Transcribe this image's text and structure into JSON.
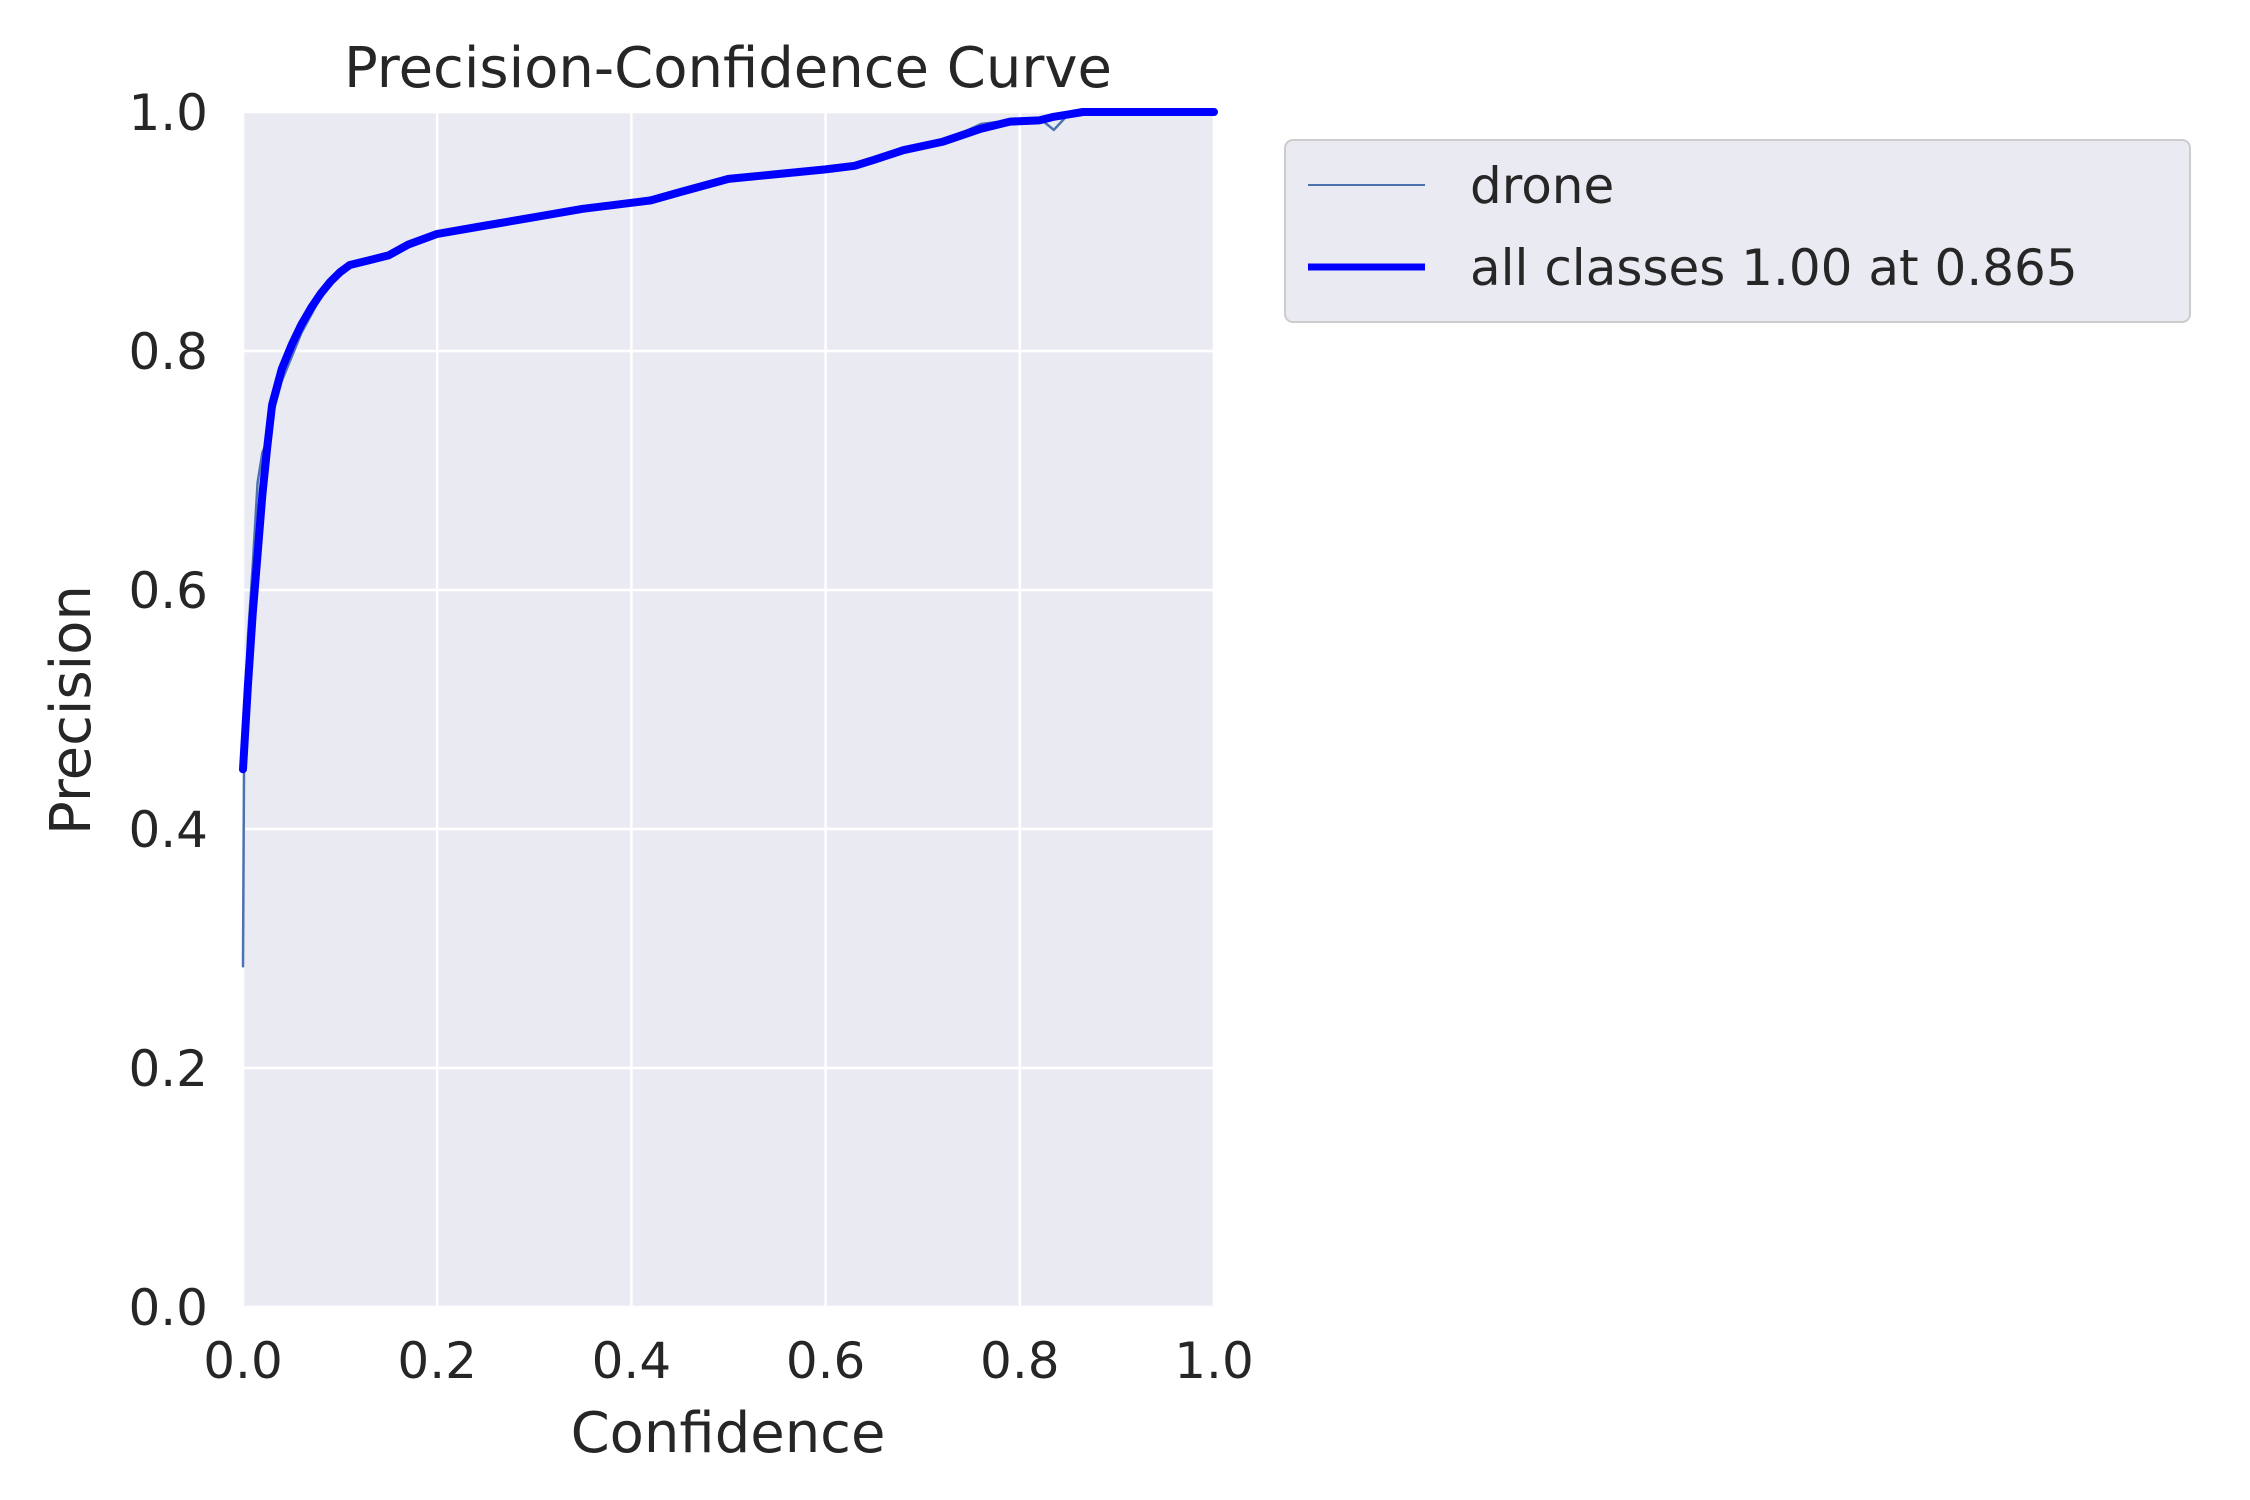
{
  "chart_data": {
    "type": "line",
    "title": "Precision-Confidence Curve",
    "xlabel": "Confidence",
    "ylabel": "Precision",
    "xlim": [
      0,
      1
    ],
    "ylim": [
      0,
      1
    ],
    "xticks": [
      "0.0",
      "0.2",
      "0.4",
      "0.6",
      "0.8",
      "1.0"
    ],
    "yticks": [
      "0.0",
      "0.2",
      "0.4",
      "0.6",
      "0.8",
      "1.0"
    ],
    "grid": true,
    "legend_position": "outside-top-right",
    "colors": {
      "plot_background": "#eaeaf2",
      "grid": "#ffffff",
      "drone": "#4c72b0",
      "all_classes": "#0000ff"
    },
    "series": [
      {
        "name": "drone",
        "x": [
          0.0,
          0.001,
          0.005,
          0.01,
          0.015,
          0.02,
          0.025,
          0.03,
          0.04,
          0.05,
          0.06,
          0.07,
          0.08,
          0.09,
          0.1,
          0.11,
          0.13,
          0.15,
          0.17,
          0.2,
          0.25,
          0.3,
          0.35,
          0.4,
          0.42,
          0.45,
          0.5,
          0.55,
          0.6,
          0.63,
          0.65,
          0.68,
          0.72,
          0.76,
          0.79,
          0.82,
          0.835,
          0.85,
          0.87,
          1.0
        ],
        "y": [
          0.285,
          0.45,
          0.56,
          0.62,
          0.69,
          0.715,
          0.725,
          0.745,
          0.775,
          0.795,
          0.815,
          0.83,
          0.845,
          0.857,
          0.866,
          0.872,
          0.876,
          0.88,
          0.889,
          0.898,
          0.905,
          0.912,
          0.919,
          0.924,
          0.926,
          0.933,
          0.944,
          0.948,
          0.952,
          0.955,
          0.96,
          0.968,
          0.975,
          0.99,
          0.993,
          0.995,
          0.985,
          0.998,
          1.0,
          1.0
        ]
      },
      {
        "name": "all classes 1.00 at 0.865",
        "x": [
          0.0,
          0.005,
          0.01,
          0.015,
          0.02,
          0.025,
          0.03,
          0.04,
          0.05,
          0.06,
          0.07,
          0.08,
          0.09,
          0.1,
          0.11,
          0.13,
          0.15,
          0.17,
          0.2,
          0.25,
          0.3,
          0.35,
          0.4,
          0.42,
          0.45,
          0.5,
          0.55,
          0.6,
          0.63,
          0.65,
          0.68,
          0.72,
          0.76,
          0.79,
          0.82,
          0.835,
          0.85,
          0.865,
          1.0
        ],
        "y": [
          0.45,
          0.52,
          0.58,
          0.63,
          0.68,
          0.72,
          0.755,
          0.785,
          0.805,
          0.822,
          0.836,
          0.848,
          0.858,
          0.866,
          0.872,
          0.876,
          0.88,
          0.889,
          0.898,
          0.905,
          0.912,
          0.919,
          0.924,
          0.926,
          0.933,
          0.944,
          0.948,
          0.952,
          0.955,
          0.96,
          0.968,
          0.975,
          0.986,
          0.992,
          0.993,
          0.996,
          0.998,
          1.0,
          1.0
        ]
      }
    ]
  }
}
